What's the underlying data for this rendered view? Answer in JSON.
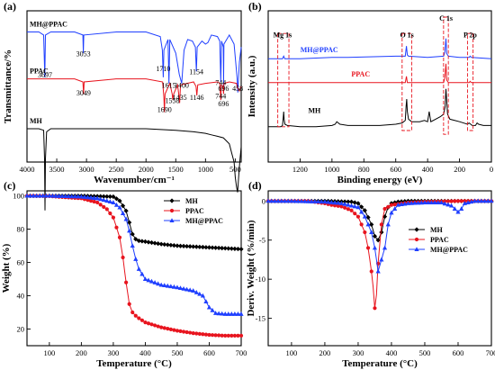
{
  "chart_data": [
    {
      "panel": "(a)",
      "type": "line",
      "xlabel": "Wavenumber/cm⁻¹",
      "ylabel": "Transmittance/%",
      "xlim": [
        4000,
        400
      ],
      "xticks": [
        4000,
        3500,
        3000,
        2500,
        2000,
        1500,
        1000,
        500
      ],
      "series": [
        {
          "name": "MH@PPAC",
          "color": "#1f3fff",
          "offset": 0.86,
          "x": [
            4000,
            3800,
            3720,
            3700,
            3690,
            3600,
            3200,
            3060,
            3053,
            3046,
            2500,
            2000,
            1760,
            1725,
            1710,
            1700,
            1630,
            1615,
            1600,
            1500,
            1440,
            1400,
            1360,
            1300,
            1220,
            1170,
            1154,
            1140,
            1060,
            1000,
            960,
            900,
            800,
            760,
            744,
            730,
            700,
            696,
            690,
            600,
            520,
            470,
            458,
            430,
            400
          ],
          "y": [
            0.0,
            0.0,
            -0.02,
            -0.3,
            -0.02,
            0.0,
            0.0,
            -0.02,
            -0.14,
            -0.02,
            0.0,
            0.0,
            -0.03,
            -0.12,
            -0.3,
            -0.12,
            -0.05,
            -0.34,
            -0.05,
            -0.14,
            -0.28,
            -0.34,
            -0.12,
            -0.05,
            -0.06,
            -0.1,
            -0.26,
            -0.1,
            -0.06,
            -0.08,
            -0.07,
            -0.02,
            -0.03,
            -0.06,
            -0.33,
            -0.06,
            -0.1,
            -0.36,
            -0.08,
            -0.02,
            -0.08,
            -0.3,
            -0.4,
            -0.2,
            -0.1
          ]
        },
        {
          "name": "PPAC",
          "color": "#e8141e",
          "offset": 0.55,
          "x": [
            4000,
            3200,
            3060,
            3049,
            3040,
            2500,
            2000,
            1720,
            1700,
            1690,
            1680,
            1600,
            1560,
            1550,
            1535,
            1470,
            1440,
            1435,
            1420,
            1200,
            1160,
            1146,
            1130,
            1000,
            800,
            760,
            744,
            735,
            706,
            696,
            690,
            600,
            480,
            460,
            430,
            400
          ],
          "y": [
            0.0,
            0.0,
            -0.02,
            -0.1,
            -0.02,
            0.0,
            0.0,
            -0.02,
            -0.12,
            -0.22,
            -0.1,
            -0.03,
            -0.1,
            -0.14,
            -0.1,
            -0.04,
            -0.13,
            -0.16,
            -0.04,
            -0.02,
            -0.05,
            -0.11,
            -0.04,
            -0.03,
            -0.02,
            -0.03,
            -0.14,
            -0.04,
            -0.05,
            -0.1,
            -0.03,
            -0.02,
            -0.03,
            -0.06,
            -0.08,
            -0.05
          ]
        },
        {
          "name": "MH",
          "color": "#000000",
          "offset": 0.22,
          "x": [
            4000,
            3800,
            3720,
            3705,
            3697,
            3690,
            3670,
            3600,
            3000,
            2500,
            2000,
            1500,
            1200,
            1000,
            900,
            800,
            700,
            600,
            560,
            520,
            500,
            480,
            460,
            440,
            420,
            400
          ],
          "y": [
            0.0,
            0.0,
            -0.01,
            -0.2,
            -0.54,
            -0.2,
            -0.02,
            0.0,
            0.0,
            0.0,
            0.0,
            -0.01,
            -0.02,
            -0.03,
            -0.04,
            -0.05,
            -0.06,
            -0.1,
            -0.16,
            -0.22,
            -0.32,
            -0.38,
            -0.42,
            -0.3,
            -0.2,
            -0.12
          ]
        }
      ],
      "annotations": [
        {
          "text": "3697",
          "x": 3697,
          "y": 0.56
        },
        {
          "text": "3053",
          "x": 3053,
          "y": 0.7
        },
        {
          "text": "1710",
          "x": 1710,
          "y": 0.6
        },
        {
          "text": "1615",
          "x": 1615,
          "y": 0.49
        },
        {
          "text": "1400",
          "x": 1400,
          "y": 0.49
        },
        {
          "text": "1154",
          "x": 1154,
          "y": 0.58
        },
        {
          "text": "744",
          "x": 744,
          "y": 0.51
        },
        {
          "text": "696",
          "x": 696,
          "y": 0.47
        },
        {
          "text": "458",
          "x": 458,
          "y": 0.47
        },
        {
          "text": "3049",
          "x": 3049,
          "y": 0.44
        },
        {
          "text": "1690",
          "x": 1690,
          "y": 0.33
        },
        {
          "text": "1558",
          "x": 1558,
          "y": 0.39
        },
        {
          "text": "1435",
          "x": 1435,
          "y": 0.41
        },
        {
          "text": "1146",
          "x": 1146,
          "y": 0.41
        },
        {
          "text": "744",
          "x": 744,
          "y": 0.42
        },
        {
          "text": "696",
          "x": 696,
          "y": 0.37
        }
      ]
    },
    {
      "panel": "(b)",
      "type": "line",
      "xlabel": "Binding energy (eV)",
      "ylabel": "Intensity (a.u.)",
      "xlim": [
        1400,
        0
      ],
      "xticks": [
        1200,
        1000,
        800,
        600,
        400,
        200,
        0
      ],
      "series": [
        {
          "name": "MH@PPAC",
          "color": "#1f3fff",
          "offset": 0.82,
          "x": [
            1400,
            1310,
            1303,
            1296,
            1200,
            1000,
            900,
            600,
            540,
            533,
            527,
            520,
            400,
            300,
            292,
            285,
            280,
            270,
            200,
            140,
            133,
            126,
            0
          ],
          "y": [
            0.0,
            0.0,
            0.02,
            0.0,
            0.0,
            0.01,
            0.01,
            0.02,
            0.02,
            0.1,
            0.03,
            0.02,
            0.01,
            0.02,
            0.05,
            0.16,
            0.04,
            0.02,
            0.01,
            0.01,
            0.02,
            0.01,
            0.0
          ]
        },
        {
          "name": "PPAC",
          "color": "#e8141e",
          "offset": 0.63,
          "x": [
            1400,
            1000,
            600,
            540,
            533,
            527,
            520,
            400,
            300,
            292,
            285,
            280,
            270,
            200,
            140,
            133,
            126,
            0
          ],
          "y": [
            0.0,
            0.0,
            0.0,
            0.0,
            0.05,
            0.0,
            0.0,
            0.0,
            0.0,
            0.04,
            0.15,
            0.02,
            0.0,
            0.0,
            0.0,
            0.01,
            0.0,
            0.0
          ]
        },
        {
          "name": "MH",
          "color": "#000000",
          "offset": 0.28,
          "x": [
            1400,
            1320,
            1310,
            1305,
            1303,
            1300,
            1295,
            1280,
            1200,
            1100,
            1000,
            980,
            970,
            950,
            900,
            800,
            700,
            600,
            560,
            540,
            535,
            531,
            527,
            520,
            500,
            450,
            420,
            400,
            390,
            380,
            350,
            320,
            300,
            290,
            285,
            280,
            275,
            260,
            200,
            150,
            140,
            130,
            120,
            100,
            90,
            80,
            50,
            0
          ],
          "y": [
            0.0,
            0.0,
            0.01,
            0.08,
            0.12,
            0.06,
            0.02,
            0.01,
            0.0,
            0.0,
            0.01,
            0.02,
            0.04,
            0.02,
            0.01,
            0.01,
            0.01,
            0.02,
            0.03,
            0.05,
            0.16,
            0.22,
            0.12,
            0.06,
            0.04,
            0.04,
            0.05,
            0.04,
            0.12,
            0.04,
            0.06,
            0.08,
            0.1,
            0.16,
            0.3,
            0.2,
            0.1,
            0.06,
            0.04,
            0.02,
            0.03,
            0.02,
            0.01,
            0.01,
            0.03,
            0.02,
            0.01,
            0.01
          ]
        }
      ],
      "labels": [
        {
          "text": "Mg 1s",
          "x": 1310,
          "y": 0.99
        },
        {
          "text": "O 1s",
          "x": 530,
          "y": 0.99
        },
        {
          "text": "C 1s",
          "x": 285,
          "y": 1.12
        },
        {
          "text": "P 2p",
          "x": 133,
          "y": 0.99
        }
      ]
    },
    {
      "panel": "(c)",
      "type": "line",
      "xlabel": "Temperature (°C)",
      "ylabel": "Weight (%)",
      "xlim": [
        30,
        700
      ],
      "ylim": [
        10,
        103
      ],
      "xticks": [
        100,
        200,
        300,
        400,
        500,
        600,
        700
      ],
      "yticks": [
        20,
        40,
        60,
        80,
        100
      ],
      "legend": "top-right",
      "series": [
        {
          "name": "MH",
          "color": "#000000",
          "marker": "diamond",
          "x": [
            30,
            100,
            200,
            300,
            320,
            340,
            350,
            360,
            370,
            380,
            400,
            450,
            500,
            550,
            600,
            650,
            700
          ],
          "y": [
            100,
            100,
            100,
            99.5,
            97,
            91,
            84,
            77,
            74,
            73,
            72.5,
            71,
            70,
            69.5,
            69,
            68.5,
            68
          ]
        },
        {
          "name": "PPAC",
          "color": "#e8141e",
          "marker": "circle",
          "x": [
            30,
            100,
            200,
            250,
            280,
            300,
            320,
            330,
            340,
            350,
            360,
            370,
            380,
            400,
            450,
            500,
            550,
            600,
            650,
            700
          ],
          "y": [
            100,
            99.8,
            98.5,
            96,
            92,
            87,
            75,
            63,
            48,
            35,
            30,
            28,
            26.5,
            24,
            21,
            19,
            17.5,
            16.5,
            16,
            16
          ]
        },
        {
          "name": "MH@PPAC",
          "color": "#1f3fff",
          "marker": "triangle",
          "x": [
            30,
            100,
            200,
            250,
            300,
            320,
            340,
            350,
            360,
            370,
            380,
            400,
            450,
            500,
            550,
            580,
            600,
            620,
            650,
            700
          ],
          "y": [
            100,
            100,
            99.5,
            98.5,
            96,
            93,
            86,
            79,
            70,
            62,
            56,
            50,
            46.5,
            45,
            43,
            40,
            33,
            29.5,
            29,
            29
          ]
        }
      ]
    },
    {
      "panel": "(d)",
      "type": "line",
      "xlabel": "Temperature (°C)",
      "ylabel": "Deriv. Weight (%/min)",
      "xlim": [
        30,
        700
      ],
      "ylim": [
        -18.5,
        1.3
      ],
      "xticks": [
        100,
        200,
        300,
        400,
        500,
        600,
        700
      ],
      "yticks": [
        -15,
        -10,
        -5,
        0
      ],
      "legend": "middle-right",
      "series": [
        {
          "name": "MH",
          "color": "#000000",
          "marker": "diamond",
          "x": [
            30,
            100,
            200,
            280,
            300,
            320,
            340,
            350,
            360,
            370,
            380,
            390,
            400,
            420,
            450,
            500,
            600,
            700
          ],
          "y": [
            0,
            0,
            0,
            -0.1,
            -0.3,
            -1.2,
            -3,
            -4.5,
            -5,
            -4,
            -2,
            -0.8,
            -0.3,
            -0.1,
            0,
            0,
            0,
            0
          ]
        },
        {
          "name": "PPAC",
          "color": "#e8141e",
          "marker": "circle",
          "x": [
            30,
            100,
            150,
            200,
            220,
            250,
            280,
            300,
            320,
            330,
            340,
            345,
            350,
            355,
            360,
            370,
            380,
            400,
            450,
            500,
            600,
            700
          ],
          "y": [
            0,
            0,
            0,
            -0.3,
            -0.5,
            -0.7,
            -1.2,
            -2,
            -4,
            -6,
            -9,
            -11,
            -13.7,
            -12,
            -8,
            -3,
            -1,
            -0.5,
            -0.2,
            -0.1,
            0,
            0
          ]
        },
        {
          "name": "MH@PPAC",
          "color": "#1f3fff",
          "marker": "triangle",
          "x": [
            30,
            100,
            200,
            250,
            300,
            320,
            340,
            350,
            360,
            370,
            380,
            390,
            400,
            420,
            450,
            500,
            550,
            580,
            600,
            610,
            620,
            650,
            700
          ],
          "y": [
            0,
            0,
            -0.1,
            -0.3,
            -0.8,
            -2,
            -4,
            -6,
            -9,
            -7.5,
            -6,
            -3,
            -1.5,
            -0.5,
            -0.3,
            -0.2,
            -0.2,
            -0.6,
            -1.4,
            -1,
            -0.3,
            0,
            0
          ]
        }
      ]
    }
  ]
}
